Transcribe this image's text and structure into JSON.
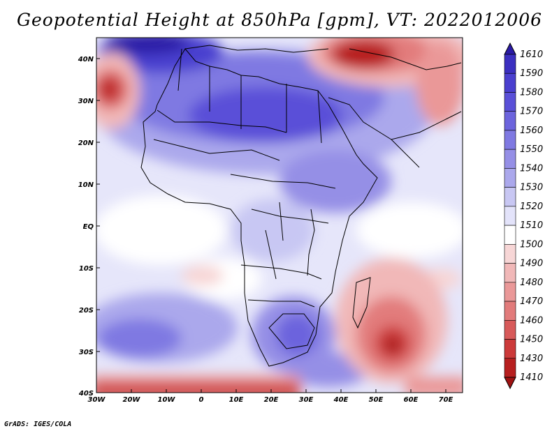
{
  "title": "Geopotential Height at 850hPa [gpm], VT: 2022012006",
  "footer": "GrADS: IGES/COLA",
  "map": {
    "lat_labels": [
      "40N",
      "30N",
      "20N",
      "10N",
      "EQ",
      "10S",
      "20S",
      "30S",
      "40S"
    ],
    "lon_labels": [
      "30W",
      "20W",
      "10W",
      "0",
      "10E",
      "20E",
      "30E",
      "40E",
      "50E",
      "60E",
      "70E"
    ]
  },
  "colorbar": {
    "levels": [
      "1610",
      "1590",
      "1580",
      "1570",
      "1560",
      "1550",
      "1540",
      "1530",
      "1520",
      "1510",
      "1500",
      "1490",
      "1480",
      "1470",
      "1460",
      "1450",
      "1430",
      "1410"
    ],
    "colors": [
      "#2a1aa6",
      "#3b2fc0",
      "#4a3fcf",
      "#5a50d8",
      "#6c64dd",
      "#7f79e2",
      "#958fe6",
      "#aba8ec",
      "#c8c7f3",
      "#e3e3fa",
      "#ffffff",
      "#f7d6d6",
      "#f1b8b8",
      "#ea9898",
      "#e27b7b",
      "#d85a5a",
      "#cc3a3a",
      "#b71f1f",
      "#9f1212"
    ]
  }
}
